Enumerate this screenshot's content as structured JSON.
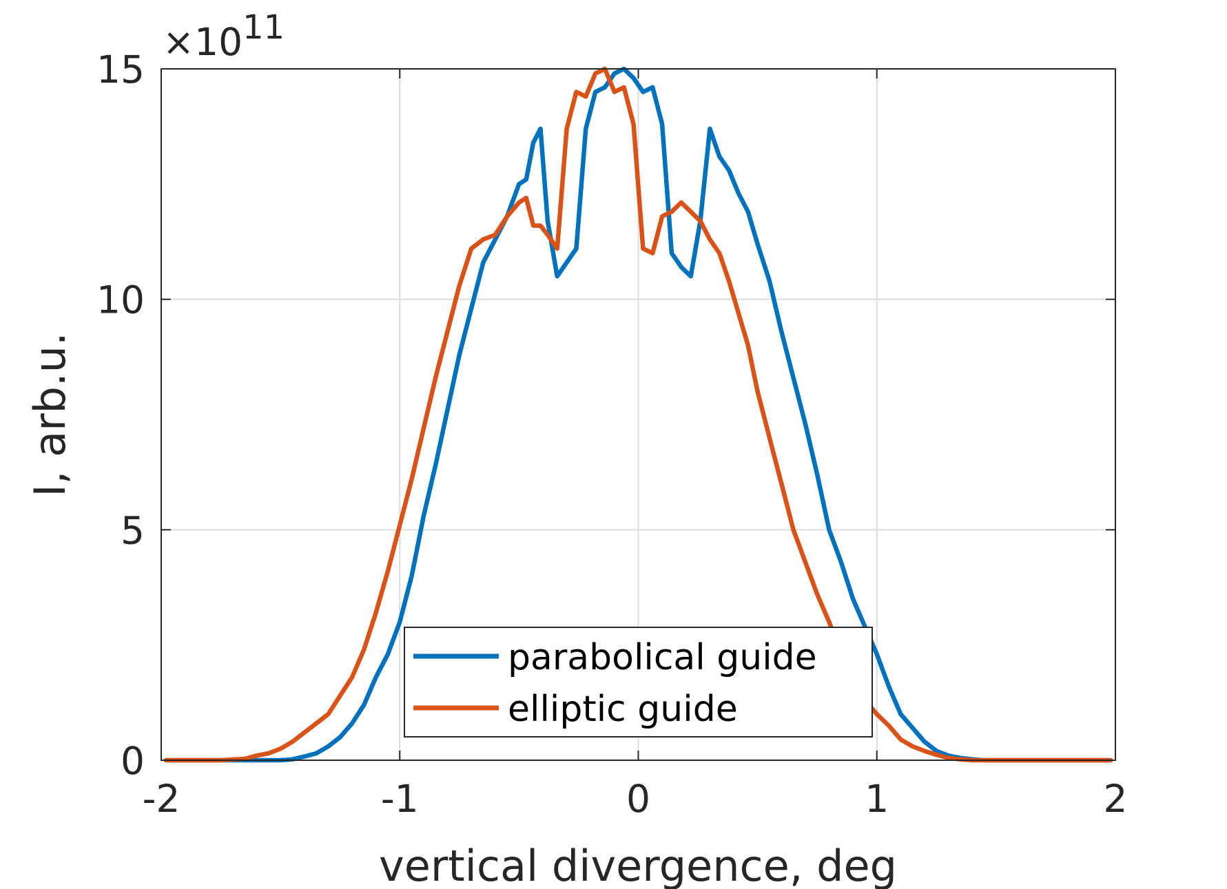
{
  "chart_data": {
    "type": "line",
    "xlabel": "vertical divergence, deg",
    "ylabel": "I, arb.u.",
    "y_exponent_label": "×10",
    "y_exponent_power": "11",
    "xlim": [
      -2,
      2
    ],
    "ylim": [
      0,
      15
    ],
    "x_ticks": [
      -2,
      -1,
      0,
      1,
      2
    ],
    "y_ticks": [
      0,
      5,
      10,
      15
    ],
    "x_tick_labels": [
      "-2",
      "-1",
      "0",
      "1",
      "2"
    ],
    "y_tick_labels": [
      "0",
      "5",
      "10",
      "15"
    ],
    "grid": true,
    "legend_position": "bottom-center",
    "series": [
      {
        "name": "parabolical guide",
        "color": "#0072bd",
        "x": [
          -1.98,
          -1.7,
          -1.5,
          -1.45,
          -1.4,
          -1.35,
          -1.3,
          -1.25,
          -1.2,
          -1.15,
          -1.1,
          -1.05,
          -1.0,
          -0.95,
          -0.9,
          -0.85,
          -0.8,
          -0.75,
          -0.7,
          -0.65,
          -0.6,
          -0.55,
          -0.5,
          -0.47,
          -0.44,
          -0.41,
          -0.38,
          -0.34,
          -0.3,
          -0.26,
          -0.22,
          -0.18,
          -0.14,
          -0.1,
          -0.06,
          -0.02,
          0.02,
          0.06,
          0.1,
          0.14,
          0.18,
          0.22,
          0.26,
          0.3,
          0.34,
          0.38,
          0.42,
          0.46,
          0.5,
          0.55,
          0.6,
          0.65,
          0.7,
          0.75,
          0.8,
          0.85,
          0.9,
          0.95,
          1.0,
          1.05,
          1.1,
          1.15,
          1.2,
          1.25,
          1.3,
          1.35,
          1.4,
          1.45,
          1.5,
          1.7,
          1.98
        ],
        "y": [
          0,
          0,
          0,
          0.02,
          0.08,
          0.15,
          0.3,
          0.5,
          0.8,
          1.2,
          1.8,
          2.3,
          3.0,
          4.0,
          5.3,
          6.4,
          7.6,
          8.8,
          9.8,
          10.8,
          11.3,
          11.8,
          12.5,
          12.6,
          13.4,
          13.7,
          11.7,
          10.5,
          10.8,
          11.1,
          13.7,
          14.5,
          14.6,
          14.9,
          15.0,
          14.8,
          14.5,
          14.6,
          13.8,
          11.0,
          10.7,
          10.5,
          11.7,
          13.7,
          13.1,
          12.8,
          12.3,
          11.9,
          11.2,
          10.4,
          9.3,
          8.3,
          7.3,
          6.2,
          5.0,
          4.3,
          3.5,
          2.9,
          2.3,
          1.6,
          1.0,
          0.7,
          0.4,
          0.2,
          0.1,
          0.05,
          0.02,
          0,
          0,
          0,
          0
        ]
      },
      {
        "name": "elliptic guide",
        "color": "#d95319",
        "x": [
          -1.98,
          -1.75,
          -1.65,
          -1.6,
          -1.55,
          -1.5,
          -1.45,
          -1.4,
          -1.35,
          -1.3,
          -1.25,
          -1.2,
          -1.15,
          -1.1,
          -1.05,
          -1.0,
          -0.95,
          -0.9,
          -0.85,
          -0.8,
          -0.75,
          -0.7,
          -0.65,
          -0.6,
          -0.55,
          -0.5,
          -0.47,
          -0.44,
          -0.41,
          -0.38,
          -0.34,
          -0.3,
          -0.26,
          -0.22,
          -0.18,
          -0.14,
          -0.1,
          -0.06,
          -0.02,
          0.02,
          0.06,
          0.1,
          0.14,
          0.18,
          0.22,
          0.26,
          0.3,
          0.34,
          0.38,
          0.42,
          0.46,
          0.5,
          0.55,
          0.6,
          0.65,
          0.7,
          0.75,
          0.8,
          0.85,
          0.9,
          0.95,
          1.0,
          1.05,
          1.1,
          1.15,
          1.2,
          1.25,
          1.3,
          1.35,
          1.4,
          1.45,
          1.5,
          1.55,
          1.6,
          1.7,
          1.98
        ],
        "y": [
          0,
          0,
          0.03,
          0.1,
          0.15,
          0.25,
          0.4,
          0.6,
          0.8,
          1.0,
          1.4,
          1.8,
          2.4,
          3.2,
          4.1,
          5.1,
          6.1,
          7.2,
          8.3,
          9.3,
          10.3,
          11.1,
          11.3,
          11.4,
          11.8,
          12.1,
          12.2,
          11.6,
          11.6,
          11.4,
          11.1,
          13.7,
          14.5,
          14.4,
          14.9,
          15.0,
          14.5,
          14.6,
          13.8,
          11.1,
          11.0,
          11.8,
          11.9,
          12.1,
          11.9,
          11.7,
          11.3,
          11.0,
          10.4,
          9.7,
          9.0,
          8.0,
          7.0,
          6.0,
          5.0,
          4.3,
          3.6,
          3.0,
          2.3,
          1.7,
          1.3,
          1.0,
          0.75,
          0.45,
          0.3,
          0.2,
          0.12,
          0.05,
          0.02,
          0,
          0,
          0,
          0,
          0,
          0,
          0
        ]
      }
    ]
  }
}
